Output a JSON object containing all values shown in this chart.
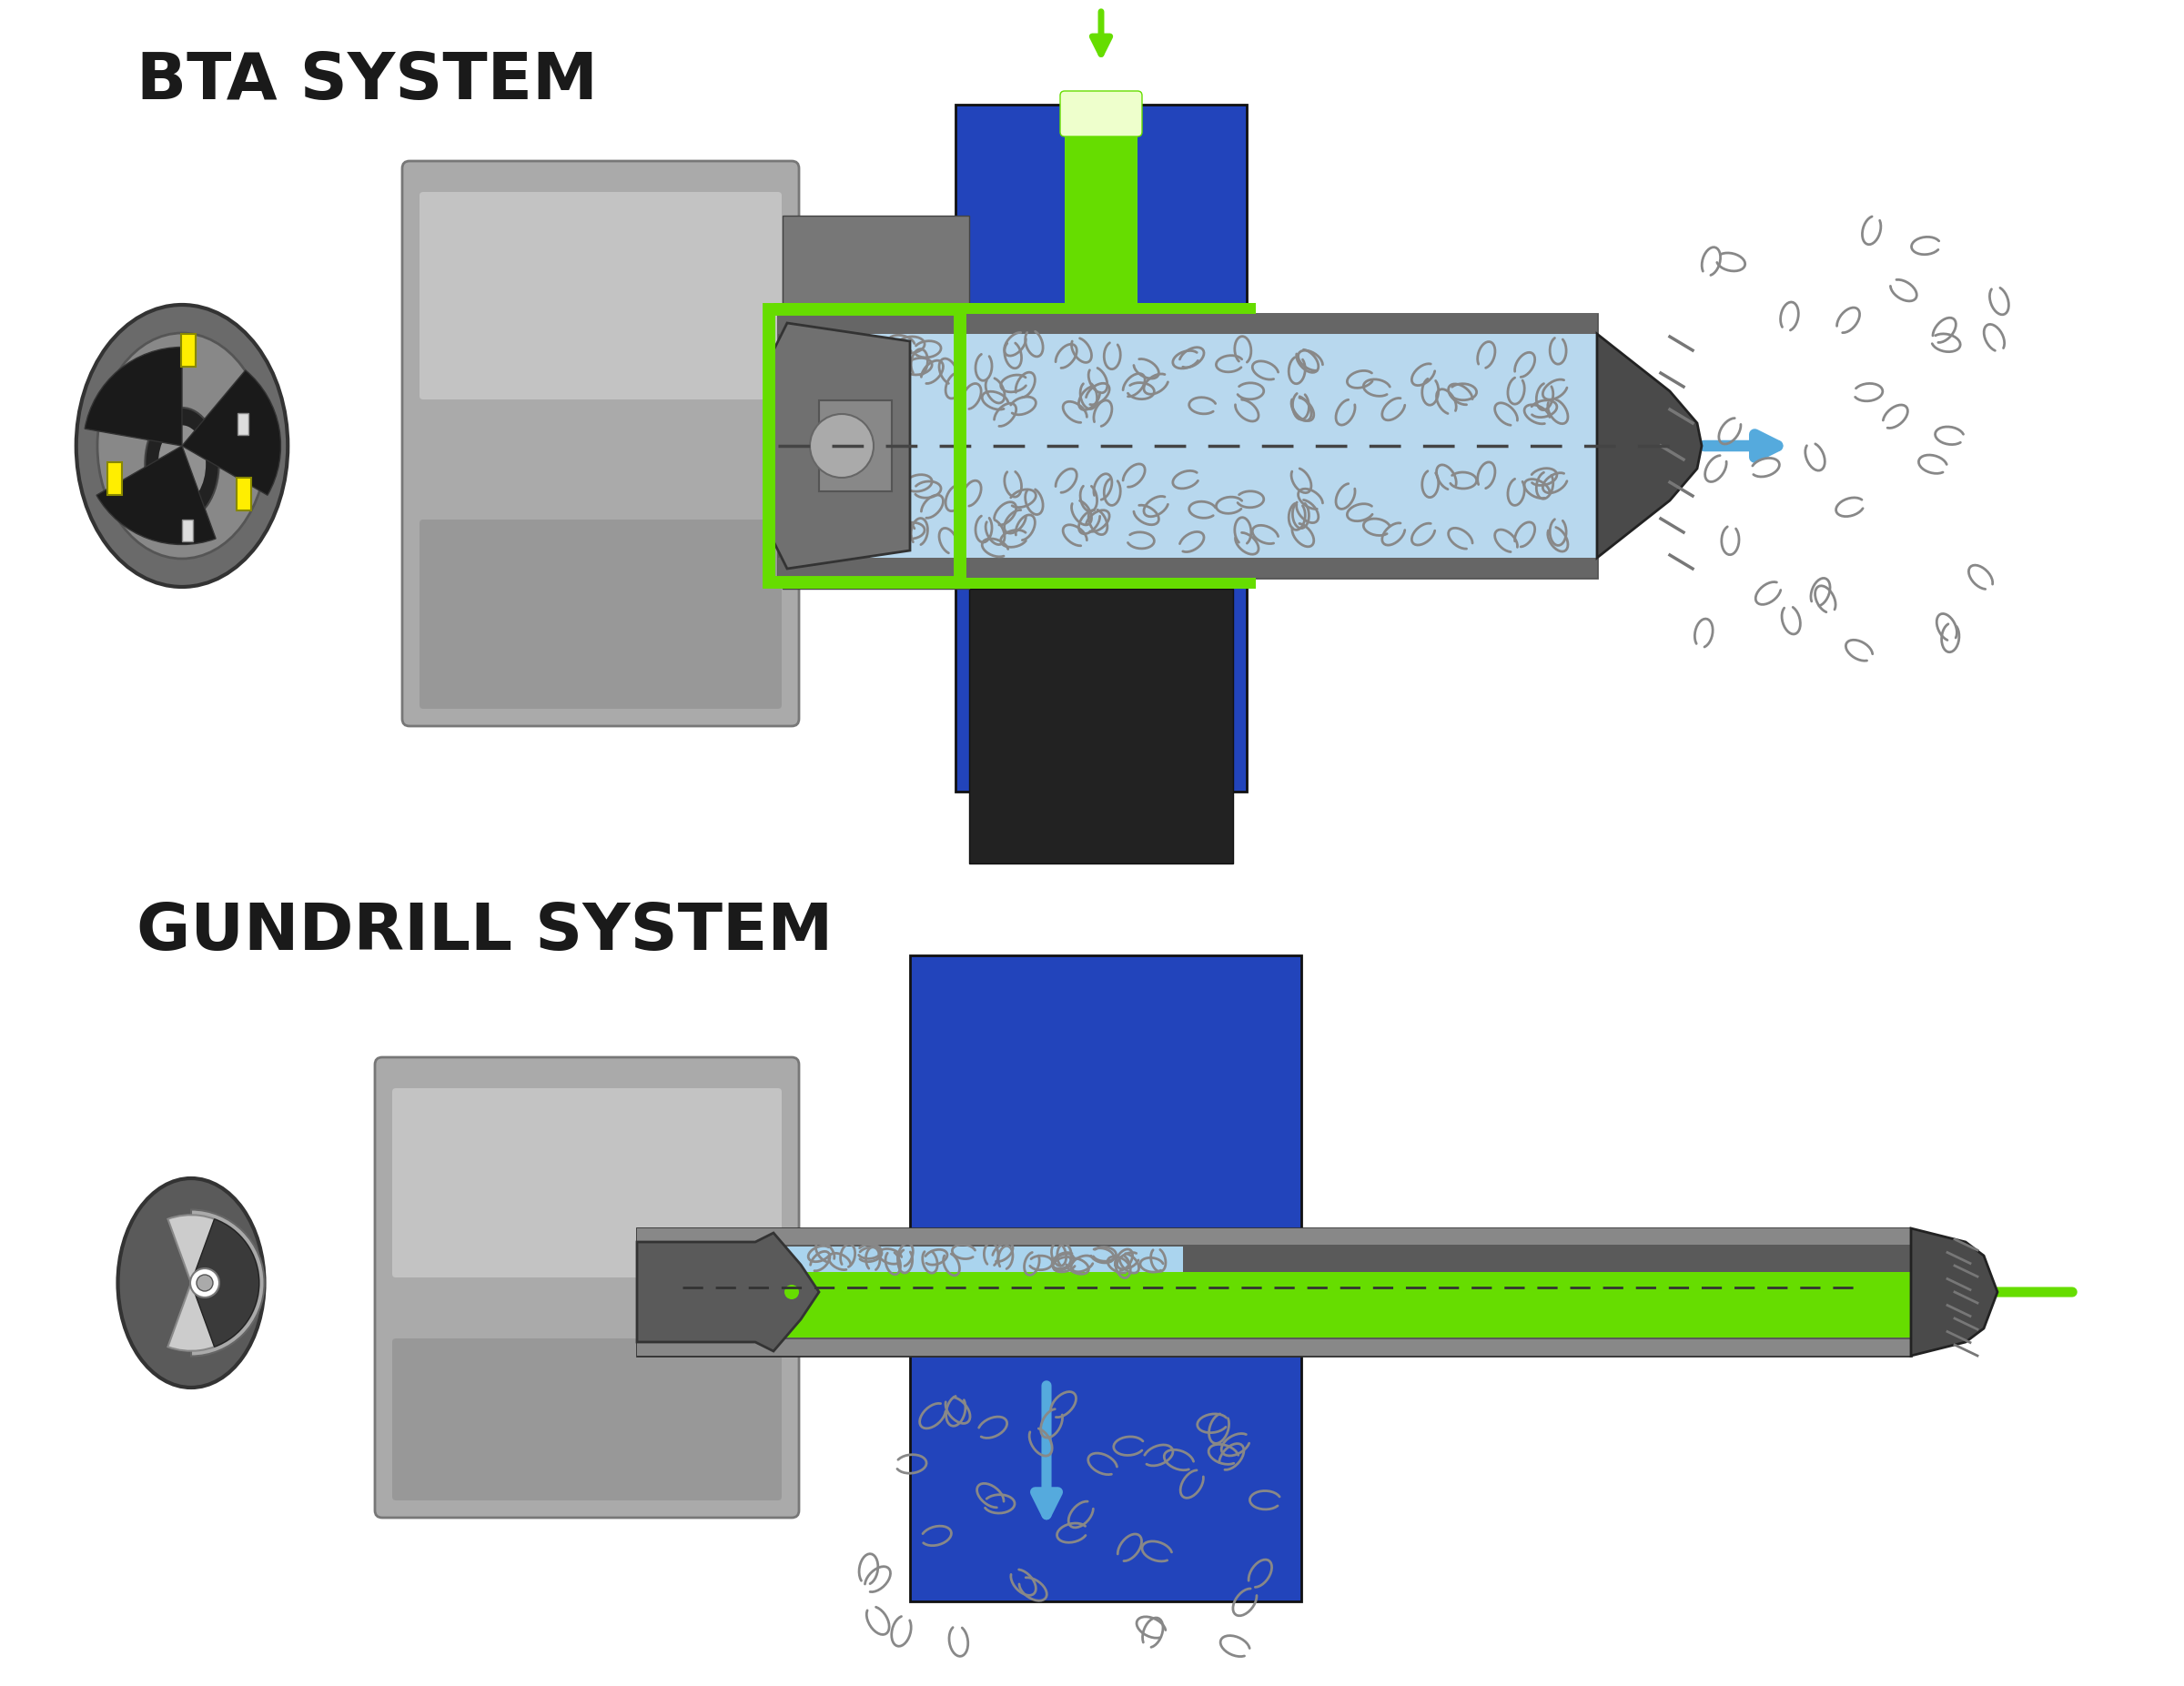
{
  "title_bta": "BTA SYSTEM",
  "title_gundrill": "GUNDRILL SYSTEM",
  "background_color": "#ffffff",
  "title_fontsize": 52,
  "colors": {
    "blue_block": "#2244BB",
    "green": "#66DD00",
    "light_blue_arrow": "#66BBEE",
    "gray_workpiece": "#AAAAAA",
    "gray_light": "#CCCCCC",
    "gray_medium": "#999999",
    "gray_dark": "#666666",
    "gray_darker": "#444444",
    "black": "#111111",
    "yellow": "#FFEE00",
    "coolant_blue": "#AAD4EE",
    "chip_dark": "#888888",
    "chip_light": "#BBBBBB",
    "green_dark": "#44AA00"
  }
}
